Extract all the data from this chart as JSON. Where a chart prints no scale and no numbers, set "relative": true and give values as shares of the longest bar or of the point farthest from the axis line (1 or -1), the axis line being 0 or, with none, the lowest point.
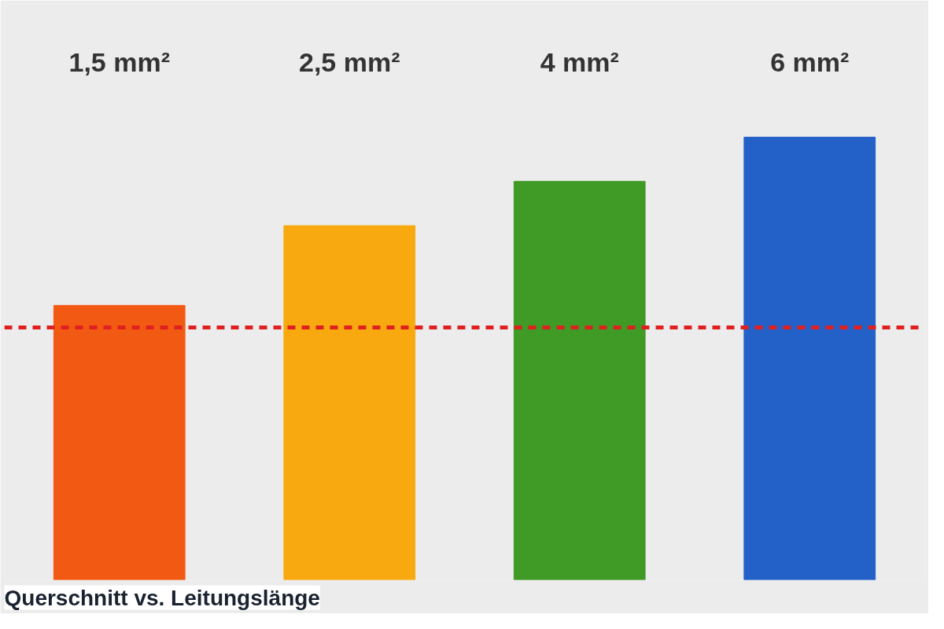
{
  "chart_data": {
    "type": "bar",
    "title": "Querschnitt vs. Leitungslänge",
    "categories": [
      "1,5 mm²",
      "2,5 mm²",
      "4 mm²",
      "6 mm²"
    ],
    "values": [
      0.62,
      0.8,
      0.9,
      1.0
    ],
    "colors": [
      "#f25a14",
      "#f7a90f",
      "#3f9a26",
      "#2360c8"
    ],
    "relative": true,
    "ref_lines": [
      {
        "axis": "y",
        "value": 0.57,
        "color": "#e02020",
        "line_style": "dashed"
      }
    ],
    "grid": false
  }
}
